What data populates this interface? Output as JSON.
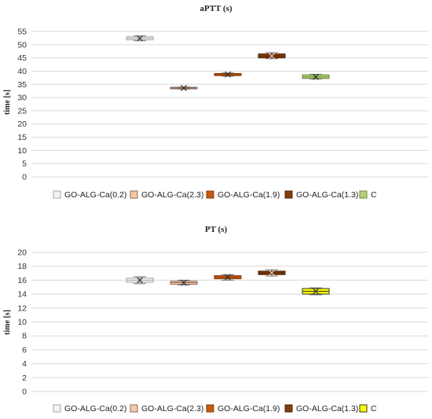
{
  "chart_data": [
    {
      "type": "box",
      "title": "aPTT (s)",
      "xlabel": "",
      "ylabel": "time [s]",
      "ylim": [
        0,
        55
      ],
      "yticks": [
        0,
        5,
        10,
        15,
        20,
        25,
        30,
        35,
        40,
        45,
        50,
        55
      ],
      "grid": true,
      "legend_position": "bottom",
      "series": [
        {
          "name": "GO-ALG-Ca(0.2)",
          "color": "#f2f2f2",
          "stroke": "#a6a6a6",
          "whisker_low": 51.5,
          "q1": 51.8,
          "median": 52.4,
          "q3": 53.0,
          "whisker_high": 53.3,
          "mean": 52.4
        },
        {
          "name": "GO-ALG-Ca(2.3)",
          "color": "#f4c9ab",
          "stroke": "#8a6d58",
          "whisker_low": 33.2,
          "q1": 33.3,
          "median": 33.6,
          "q3": 33.9,
          "whisker_high": 34.0,
          "mean": 33.6
        },
        {
          "name": "GO-ALG-Ca(1.9)",
          "color": "#c55a11",
          "stroke": "#8a3c08",
          "whisker_low": 38.1,
          "q1": 38.3,
          "median": 38.7,
          "q3": 39.1,
          "whisker_high": 39.3,
          "mean": 38.7
        },
        {
          "name": "GO-ALG-Ca(1.3)",
          "color": "#843c0c",
          "stroke": "#4d2207",
          "whisker_low": 44.7,
          "q1": 45.0,
          "median": 45.7,
          "q3": 46.5,
          "whisker_high": 47.0,
          "mean": 45.7
        },
        {
          "name": "C",
          "color": "#b4d07a",
          "stroke": "#6d8a3a",
          "whisker_low": 37.0,
          "q1": 37.2,
          "median": 37.8,
          "q3": 38.6,
          "whisker_high": 38.8,
          "mean": 37.8
        }
      ]
    },
    {
      "type": "box",
      "title": "PT (s)",
      "xlabel": "",
      "ylabel": "time [s]",
      "ylim": [
        0,
        20
      ],
      "yticks": [
        0,
        2,
        4,
        6,
        8,
        10,
        12,
        14,
        16,
        18,
        20
      ],
      "grid": true,
      "legend_position": "bottom",
      "series": [
        {
          "name": "GO-ALG-Ca(0.2)",
          "color": "#f2f2f2",
          "stroke": "#a6a6a6",
          "whisker_low": 15.5,
          "q1": 15.7,
          "median": 16.0,
          "q3": 16.3,
          "whisker_high": 16.5,
          "mean": 16.0
        },
        {
          "name": "GO-ALG-Ca(2.3)",
          "color": "#f4c9ab",
          "stroke": "#8a6d58",
          "whisker_low": 15.3,
          "q1": 15.4,
          "median": 15.65,
          "q3": 15.85,
          "whisker_high": 16.0,
          "mean": 15.65
        },
        {
          "name": "GO-ALG-Ca(1.9)",
          "color": "#c55a11",
          "stroke": "#8a3c08",
          "whisker_low": 16.0,
          "q1": 16.2,
          "median": 16.45,
          "q3": 16.65,
          "whisker_high": 16.8,
          "mean": 16.45
        },
        {
          "name": "GO-ALG-Ca(1.3)",
          "color": "#843c0c",
          "stroke": "#4d2207",
          "whisker_low": 16.6,
          "q1": 16.8,
          "median": 17.05,
          "q3": 17.3,
          "whisker_high": 17.5,
          "mean": 17.05
        },
        {
          "name": "C",
          "color": "#ffff00",
          "stroke": "#333333",
          "whisker_low": 13.9,
          "q1": 14.0,
          "median": 14.4,
          "q3": 14.8,
          "whisker_high": 14.9,
          "mean": 14.4
        }
      ]
    }
  ]
}
